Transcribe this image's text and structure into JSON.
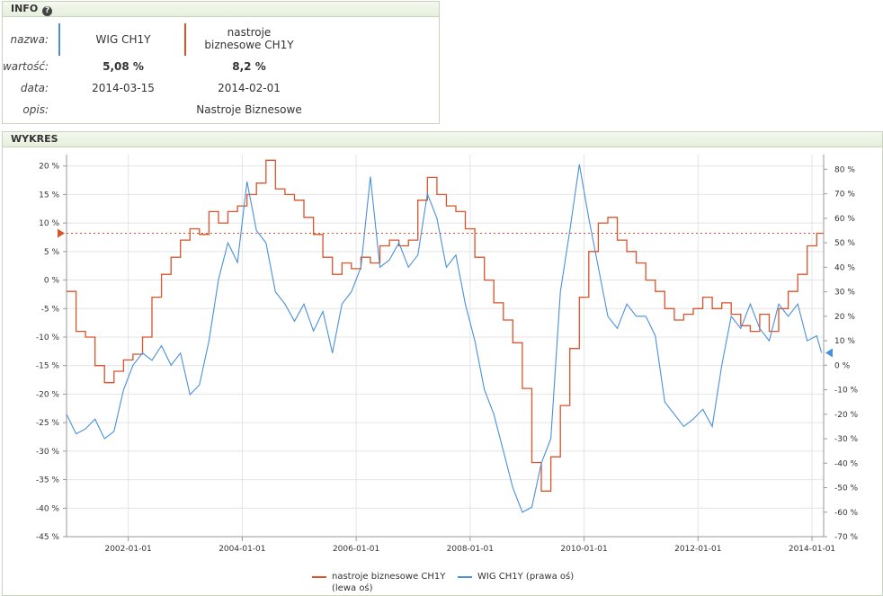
{
  "info": {
    "title": "INFO",
    "help_icon": "?",
    "labels": {
      "name": "nazwa:",
      "value": "wartość:",
      "date": "data:",
      "desc": "opis:"
    },
    "series": [
      {
        "name": "WIG CH1Y",
        "value": "5,08 %",
        "date": "2014-03-15",
        "desc": "",
        "color": "#4a90d9"
      },
      {
        "name": "nastroje biznesowe CH1Y",
        "value": "8,2 %",
        "date": "2014-02-01",
        "desc": "Nastroje Biznesowe",
        "color": "#d9532b"
      }
    ]
  },
  "chart": {
    "title": "WYKRES",
    "legend": {
      "nastroje": "nastroje biznesowe  CH1Y (lewa oś)",
      "wig": "WIG  CH1Y (prawa oś)"
    }
  },
  "chart_data": {
    "type": "line",
    "x_range": [
      "2000-12-01",
      "2014-03-15"
    ],
    "x_tick_labels": [
      "2002-01-01",
      "2004-01-01",
      "2006-01-01",
      "2008-01-01",
      "2010-01-01",
      "2012-01-01",
      "2014-01-01"
    ],
    "left_axis": {
      "ylim": [
        -45,
        22
      ],
      "ticks": [
        20,
        15,
        10,
        5,
        0,
        -5,
        -10,
        -15,
        -20,
        -25,
        -30,
        -35,
        -40,
        -45
      ],
      "tick_labels": [
        "20 %",
        "15 %",
        "10 %",
        "5 %",
        "0 %",
        "-5 %",
        "-10 %",
        "-15 %",
        "-20 %",
        "-25 %",
        "-30 %",
        "-35 %",
        "-40 %",
        "-45 %"
      ]
    },
    "right_axis": {
      "ylim": [
        -70,
        86
      ],
      "ticks": [
        80,
        70,
        60,
        50,
        40,
        30,
        20,
        10,
        0,
        -10,
        -20,
        -30,
        -40,
        -50,
        -60,
        -70
      ],
      "tick_labels": [
        "80 %",
        "70 %",
        "60 %",
        "50 %",
        "40 %",
        "30 %",
        "20 %",
        "10 %",
        "0 %",
        "-10 %",
        "-20 %",
        "-30 %",
        "-40 %",
        "-50 %",
        "-60 %",
        "-70 %"
      ]
    },
    "reference_line": {
      "axis": "left",
      "value": 8.2
    },
    "right_marker_value": 5.08,
    "series": [
      {
        "name": "nastroje biznesowe CH1Y",
        "axis": "left",
        "style": "step",
        "color": "#d9532b",
        "points": [
          [
            "2000-12",
            -2
          ],
          [
            "2001-02",
            -9
          ],
          [
            "2001-04",
            -10
          ],
          [
            "2001-06",
            -15
          ],
          [
            "2001-08",
            -18
          ],
          [
            "2001-10",
            -16
          ],
          [
            "2001-12",
            -14
          ],
          [
            "2002-02",
            -13
          ],
          [
            "2002-04",
            -10
          ],
          [
            "2002-06",
            -3
          ],
          [
            "2002-08",
            1
          ],
          [
            "2002-10",
            4
          ],
          [
            "2002-12",
            7
          ],
          [
            "2003-02",
            9
          ],
          [
            "2003-04",
            8
          ],
          [
            "2003-06",
            12
          ],
          [
            "2003-08",
            10
          ],
          [
            "2003-10",
            12
          ],
          [
            "2003-12",
            13
          ],
          [
            "2004-02",
            15
          ],
          [
            "2004-04",
            17
          ],
          [
            "2004-06",
            21
          ],
          [
            "2004-08",
            16
          ],
          [
            "2004-10",
            15
          ],
          [
            "2004-12",
            14
          ],
          [
            "2005-02",
            11
          ],
          [
            "2005-04",
            8
          ],
          [
            "2005-06",
            4
          ],
          [
            "2005-08",
            1
          ],
          [
            "2005-10",
            3
          ],
          [
            "2005-12",
            2
          ],
          [
            "2006-02",
            4
          ],
          [
            "2006-04",
            3
          ],
          [
            "2006-06",
            6
          ],
          [
            "2006-08",
            7
          ],
          [
            "2006-10",
            6
          ],
          [
            "2006-12",
            7
          ],
          [
            "2007-02",
            14
          ],
          [
            "2007-04",
            18
          ],
          [
            "2007-06",
            15
          ],
          [
            "2007-08",
            13
          ],
          [
            "2007-10",
            12
          ],
          [
            "2007-12",
            9
          ],
          [
            "2008-02",
            4
          ],
          [
            "2008-04",
            0
          ],
          [
            "2008-06",
            -4
          ],
          [
            "2008-08",
            -7
          ],
          [
            "2008-10",
            -11
          ],
          [
            "2008-12",
            -19
          ],
          [
            "2009-02",
            -32
          ],
          [
            "2009-04",
            -37
          ],
          [
            "2009-06",
            -31
          ],
          [
            "2009-08",
            -22
          ],
          [
            "2009-10",
            -12
          ],
          [
            "2009-12",
            -3
          ],
          [
            "2010-02",
            5
          ],
          [
            "2010-04",
            10
          ],
          [
            "2010-06",
            11
          ],
          [
            "2010-08",
            7
          ],
          [
            "2010-10",
            5
          ],
          [
            "2010-12",
            3
          ],
          [
            "2011-02",
            0
          ],
          [
            "2011-04",
            -2
          ],
          [
            "2011-06",
            -5
          ],
          [
            "2011-08",
            -7
          ],
          [
            "2011-10",
            -6
          ],
          [
            "2011-12",
            -5
          ],
          [
            "2012-02",
            -3
          ],
          [
            "2012-04",
            -5
          ],
          [
            "2012-06",
            -4
          ],
          [
            "2012-08",
            -6
          ],
          [
            "2012-10",
            -8
          ],
          [
            "2012-12",
            -9
          ],
          [
            "2013-02",
            -6
          ],
          [
            "2013-04",
            -9
          ],
          [
            "2013-06",
            -5
          ],
          [
            "2013-08",
            -2
          ],
          [
            "2013-10",
            1
          ],
          [
            "2013-12",
            6
          ],
          [
            "2014-02",
            8.2
          ]
        ]
      },
      {
        "name": "WIG CH1Y",
        "axis": "right",
        "style": "line",
        "color": "#4a90d9",
        "points": [
          [
            "2000-12",
            -20
          ],
          [
            "2001-02",
            -28
          ],
          [
            "2001-04",
            -26
          ],
          [
            "2001-06",
            -22
          ],
          [
            "2001-08",
            -30
          ],
          [
            "2001-10",
            -27
          ],
          [
            "2001-12",
            -10
          ],
          [
            "2002-02",
            0
          ],
          [
            "2002-04",
            5
          ],
          [
            "2002-06",
            2
          ],
          [
            "2002-08",
            8
          ],
          [
            "2002-10",
            0
          ],
          [
            "2002-12",
            5
          ],
          [
            "2003-02",
            -12
          ],
          [
            "2003-04",
            -8
          ],
          [
            "2003-06",
            10
          ],
          [
            "2003-08",
            35
          ],
          [
            "2003-10",
            50
          ],
          [
            "2003-12",
            42
          ],
          [
            "2004-02",
            75
          ],
          [
            "2004-04",
            55
          ],
          [
            "2004-06",
            50
          ],
          [
            "2004-08",
            30
          ],
          [
            "2004-10",
            25
          ],
          [
            "2004-12",
            18
          ],
          [
            "2005-02",
            25
          ],
          [
            "2005-04",
            14
          ],
          [
            "2005-06",
            22
          ],
          [
            "2005-08",
            5
          ],
          [
            "2005-10",
            25
          ],
          [
            "2005-12",
            30
          ],
          [
            "2006-02",
            40
          ],
          [
            "2006-04",
            77
          ],
          [
            "2006-06",
            40
          ],
          [
            "2006-08",
            43
          ],
          [
            "2006-10",
            50
          ],
          [
            "2006-12",
            40
          ],
          [
            "2007-02",
            45
          ],
          [
            "2007-04",
            70
          ],
          [
            "2007-06",
            60
          ],
          [
            "2007-08",
            40
          ],
          [
            "2007-10",
            45
          ],
          [
            "2007-12",
            25
          ],
          [
            "2008-02",
            10
          ],
          [
            "2008-04",
            -10
          ],
          [
            "2008-06",
            -20
          ],
          [
            "2008-08",
            -35
          ],
          [
            "2008-10",
            -50
          ],
          [
            "2008-12",
            -60
          ],
          [
            "2009-02",
            -58
          ],
          [
            "2009-04",
            -40
          ],
          [
            "2009-06",
            -30
          ],
          [
            "2009-08",
            30
          ],
          [
            "2009-10",
            55
          ],
          [
            "2009-12",
            82
          ],
          [
            "2010-02",
            60
          ],
          [
            "2010-04",
            40
          ],
          [
            "2010-06",
            20
          ],
          [
            "2010-08",
            15
          ],
          [
            "2010-10",
            25
          ],
          [
            "2010-12",
            20
          ],
          [
            "2011-02",
            20
          ],
          [
            "2011-04",
            12
          ],
          [
            "2011-06",
            -15
          ],
          [
            "2011-08",
            -20
          ],
          [
            "2011-10",
            -25
          ],
          [
            "2011-12",
            -22
          ],
          [
            "2012-02",
            -18
          ],
          [
            "2012-04",
            -25
          ],
          [
            "2012-06",
            0
          ],
          [
            "2012-08",
            20
          ],
          [
            "2012-10",
            15
          ],
          [
            "2012-12",
            25
          ],
          [
            "2013-02",
            15
          ],
          [
            "2013-04",
            10
          ],
          [
            "2013-06",
            25
          ],
          [
            "2013-08",
            20
          ],
          [
            "2013-10",
            25
          ],
          [
            "2013-12",
            10
          ],
          [
            "2014-02",
            12
          ],
          [
            "2014-03",
            5.08
          ]
        ]
      }
    ]
  }
}
